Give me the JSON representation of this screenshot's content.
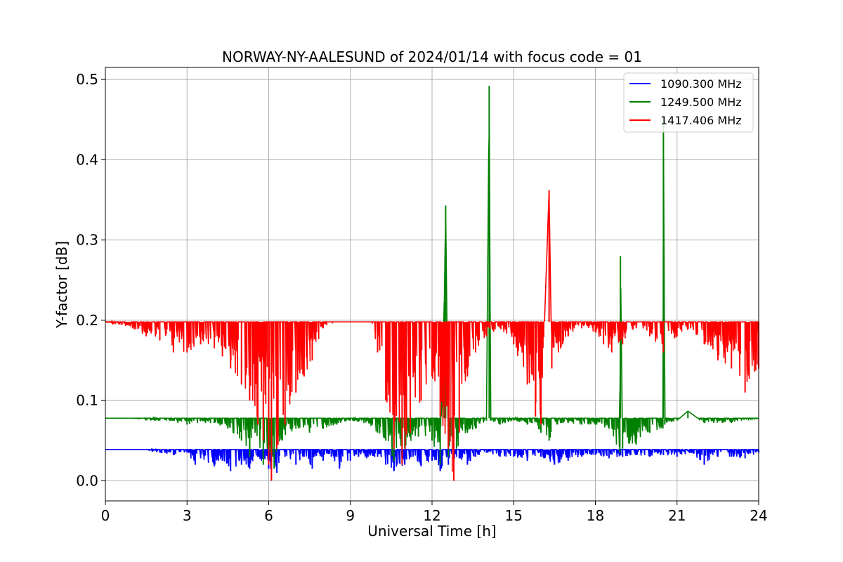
{
  "chart_data": {
    "type": "line",
    "title": "NORWAY-NY-AALESUND of 2024/01/14 with focus code = 01",
    "xlabel": "Universal Time [h]",
    "ylabel": "Y-factor [dB]",
    "xlim": [
      0,
      24
    ],
    "ylim": [
      -0.025,
      0.515
    ],
    "xticks": [
      0,
      3,
      6,
      9,
      12,
      15,
      18,
      21,
      24
    ],
    "xtick_labels": [
      "0",
      "3",
      "6",
      "9",
      "12",
      "15",
      "18",
      "21",
      "24"
    ],
    "yticks": [
      0.0,
      0.1,
      0.2,
      0.3,
      0.4,
      0.5
    ],
    "ytick_labels": [
      "0.0",
      "0.1",
      "0.2",
      "0.3",
      "0.4",
      "0.5"
    ],
    "grid": true,
    "legend_position": "top-right",
    "series": [
      {
        "name": "1090.300 MHz",
        "color": "#0000ff",
        "baseline": 0.039,
        "points": [
          [
            0,
            0.039
          ],
          [
            0.5,
            0.039
          ],
          [
            1,
            0.039
          ],
          [
            1.5,
            0.039
          ],
          [
            2,
            0.035
          ],
          [
            2.5,
            0.032
          ],
          [
            3,
            0.035
          ],
          [
            3.3,
            0.02
          ],
          [
            3.5,
            0.028
          ],
          [
            4,
            0.018
          ],
          [
            4.3,
            0.025
          ],
          [
            4.6,
            0.012
          ],
          [
            5,
            0.02
          ],
          [
            5.3,
            0.015
          ],
          [
            5.6,
            0.03
          ],
          [
            6,
            0.015
          ],
          [
            6.3,
            0.01
          ],
          [
            6.6,
            0.03
          ],
          [
            7,
            0.02
          ],
          [
            7.3,
            0.03
          ],
          [
            7.6,
            0.015
          ],
          [
            7.8,
            0.035
          ],
          [
            8,
            0.025
          ],
          [
            8.3,
            0.03
          ],
          [
            8.6,
            0.015
          ],
          [
            9,
            0.025
          ],
          [
            9.3,
            0.03
          ],
          [
            9.6,
            0.028
          ],
          [
            10,
            0.03
          ],
          [
            10.3,
            0.02
          ],
          [
            10.6,
            0.012
          ],
          [
            11,
            0.02
          ],
          [
            11.3,
            0.03
          ],
          [
            11.6,
            0.018
          ],
          [
            12,
            0.025
          ],
          [
            12.3,
            0.012
          ],
          [
            12.6,
            0.02
          ],
          [
            13,
            0.028
          ],
          [
            13.3,
            0.02
          ],
          [
            13.6,
            0.03
          ],
          [
            14,
            0.035
          ],
          [
            14.5,
            0.03
          ],
          [
            15,
            0.03
          ],
          [
            15.5,
            0.025
          ],
          [
            16,
            0.03
          ],
          [
            16.5,
            0.02
          ],
          [
            17,
            0.025
          ],
          [
            17.5,
            0.03
          ],
          [
            18,
            0.032
          ],
          [
            18.5,
            0.028
          ],
          [
            19,
            0.03
          ],
          [
            19.5,
            0.032
          ],
          [
            20,
            0.03
          ],
          [
            20.5,
            0.032
          ],
          [
            21,
            0.03
          ],
          [
            21.5,
            0.035
          ],
          [
            22,
            0.02
          ],
          [
            22.5,
            0.03
          ],
          [
            23,
            0.03
          ],
          [
            23.5,
            0.028
          ],
          [
            24,
            0.035
          ]
        ]
      },
      {
        "name": "1249.500 MHz",
        "color": "#008000",
        "baseline": 0.078,
        "points": [
          [
            0,
            0.078
          ],
          [
            1,
            0.078
          ],
          [
            2,
            0.075
          ],
          [
            3,
            0.07
          ],
          [
            4,
            0.072
          ],
          [
            4.5,
            0.065
          ],
          [
            5,
            0.05
          ],
          [
            5.3,
            0.03
          ],
          [
            5.5,
            0.06
          ],
          [
            5.8,
            0.02
          ],
          [
            6,
            0.04
          ],
          [
            6.2,
            0.015
          ],
          [
            6.5,
            0.05
          ],
          [
            7,
            0.065
          ],
          [
            7.5,
            0.06
          ],
          [
            8,
            0.065
          ],
          [
            8.5,
            0.07
          ],
          [
            9,
            0.075
          ],
          [
            9.5,
            0.072
          ],
          [
            10,
            0.06
          ],
          [
            10.3,
            0.05
          ],
          [
            10.6,
            0.025
          ],
          [
            11,
            0.04
          ],
          [
            11.5,
            0.055
          ],
          [
            12,
            0.05
          ],
          [
            12.3,
            0.02
          ],
          [
            12.45,
            0.222
          ],
          [
            12.5,
            0.343
          ],
          [
            12.6,
            0.03
          ],
          [
            12.9,
            0.04
          ],
          [
            13.3,
            0.06
          ],
          [
            13.6,
            0.065
          ],
          [
            14,
            0.075
          ],
          [
            14.1,
            0.492
          ],
          [
            14.15,
            0.075
          ],
          [
            14.5,
            0.07
          ],
          [
            15,
            0.075
          ],
          [
            15.5,
            0.07
          ],
          [
            16,
            0.06
          ],
          [
            16.3,
            0.05
          ],
          [
            16.6,
            0.07
          ],
          [
            17,
            0.072
          ],
          [
            17.5,
            0.07
          ],
          [
            18,
            0.07
          ],
          [
            18.5,
            0.065
          ],
          [
            18.9,
            0.035
          ],
          [
            18.92,
            0.28
          ],
          [
            19,
            0.04
          ],
          [
            19.5,
            0.045
          ],
          [
            20,
            0.06
          ],
          [
            20.48,
            0.065
          ],
          [
            20.5,
            0.455
          ],
          [
            20.55,
            0.07
          ],
          [
            21,
            0.075
          ],
          [
            21.4,
            0.087
          ],
          [
            22,
            0.072
          ],
          [
            23,
            0.072
          ],
          [
            24,
            0.078
          ]
        ]
      },
      {
        "name": "1417.406 MHz",
        "color": "#ff0000",
        "baseline": 0.198,
        "points": [
          [
            0,
            0.198
          ],
          [
            0.5,
            0.195
          ],
          [
            1,
            0.19
          ],
          [
            1.5,
            0.18
          ],
          [
            2,
            0.175
          ],
          [
            2.5,
            0.16
          ],
          [
            3,
            0.16
          ],
          [
            3.5,
            0.17
          ],
          [
            4,
            0.165
          ],
          [
            4.3,
            0.155
          ],
          [
            4.6,
            0.14
          ],
          [
            5,
            0.12
          ],
          [
            5.3,
            0.1
          ],
          [
            5.6,
            0.07
          ],
          [
            5.8,
            0.05
          ],
          [
            6,
            0.02
          ],
          [
            6.1,
            0.0
          ],
          [
            6.3,
            0.04
          ],
          [
            6.6,
            0.07
          ],
          [
            7,
            0.11
          ],
          [
            7.3,
            0.13
          ],
          [
            7.6,
            0.15
          ],
          [
            8,
            0.19
          ],
          [
            8.5,
            0.198
          ],
          [
            9,
            0.198
          ],
          [
            9.5,
            0.198
          ],
          [
            9.8,
            0.198
          ],
          [
            10,
            0.16
          ],
          [
            10.3,
            0.1
          ],
          [
            10.6,
            0.04
          ],
          [
            10.9,
            0.02
          ],
          [
            11.2,
            0.06
          ],
          [
            11.6,
            0.1
          ],
          [
            12,
            0.13
          ],
          [
            12.3,
            0.08
          ],
          [
            12.6,
            0.04
          ],
          [
            12.8,
            0.0
          ],
          [
            13,
            0.06
          ],
          [
            13.3,
            0.13
          ],
          [
            13.6,
            0.16
          ],
          [
            14,
            0.18
          ],
          [
            14.5,
            0.19
          ],
          [
            15,
            0.17
          ],
          [
            15.5,
            0.12
          ],
          [
            15.8,
            0.08
          ],
          [
            16,
            0.07
          ],
          [
            16.3,
            0.362
          ],
          [
            16.4,
            0.14
          ],
          [
            16.8,
            0.17
          ],
          [
            17,
            0.18
          ],
          [
            17.5,
            0.19
          ],
          [
            18,
            0.185
          ],
          [
            18.3,
            0.17
          ],
          [
            18.6,
            0.16
          ],
          [
            19,
            0.17
          ],
          [
            19.5,
            0.19
          ],
          [
            20,
            0.18
          ],
          [
            20.5,
            0.16
          ],
          [
            21,
            0.18
          ],
          [
            21.5,
            0.19
          ],
          [
            22,
            0.17
          ],
          [
            22.5,
            0.15
          ],
          [
            23,
            0.14
          ],
          [
            23.5,
            0.11
          ],
          [
            24,
            0.14
          ]
        ]
      }
    ]
  }
}
